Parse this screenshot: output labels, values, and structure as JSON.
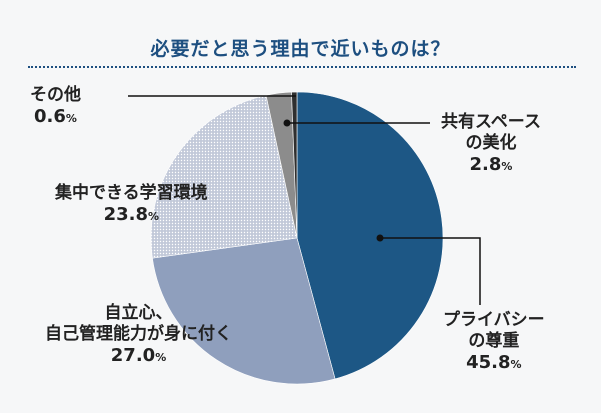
{
  "title": "必要だと思う理由で近いものは？",
  "colors": {
    "title": "#1d4f80",
    "privacy": "#1d5785",
    "independence": "#8f9fbd",
    "study": "#c6cddc",
    "space": "#8c8c8c",
    "other": "#2f2f2f",
    "background": "#f6f7f8"
  },
  "chart_data": {
    "type": "pie",
    "start_angle": "12 o'clock",
    "direction": "clockwise",
    "slices": [
      {
        "label": "プライバシーの尊重",
        "value": 45.8
      },
      {
        "label": "自立心、自己管理能力が身に付く",
        "value": 27.0
      },
      {
        "label": "集中できる学習環境",
        "value": 23.8
      },
      {
        "label": "共有スペースの美化",
        "value": 2.8
      },
      {
        "label": "その他",
        "value": 0.6
      }
    ]
  },
  "labels": {
    "privacy": {
      "line1": "プライバシー",
      "line2": "の尊重",
      "pct": "45.8",
      "unit": "%"
    },
    "independence": {
      "line1": "自立心、",
      "line2": "自己管理能力が身に付く",
      "pct": "27.0",
      "unit": "%"
    },
    "study": {
      "line1": "集中できる学習環境",
      "pct": "23.8",
      "unit": "%"
    },
    "space": {
      "line1": "共有スペース",
      "line2": "の美化",
      "pct": "2.8",
      "unit": "%"
    },
    "other": {
      "line1": "その他",
      "pct": "0.6",
      "unit": "%"
    }
  }
}
